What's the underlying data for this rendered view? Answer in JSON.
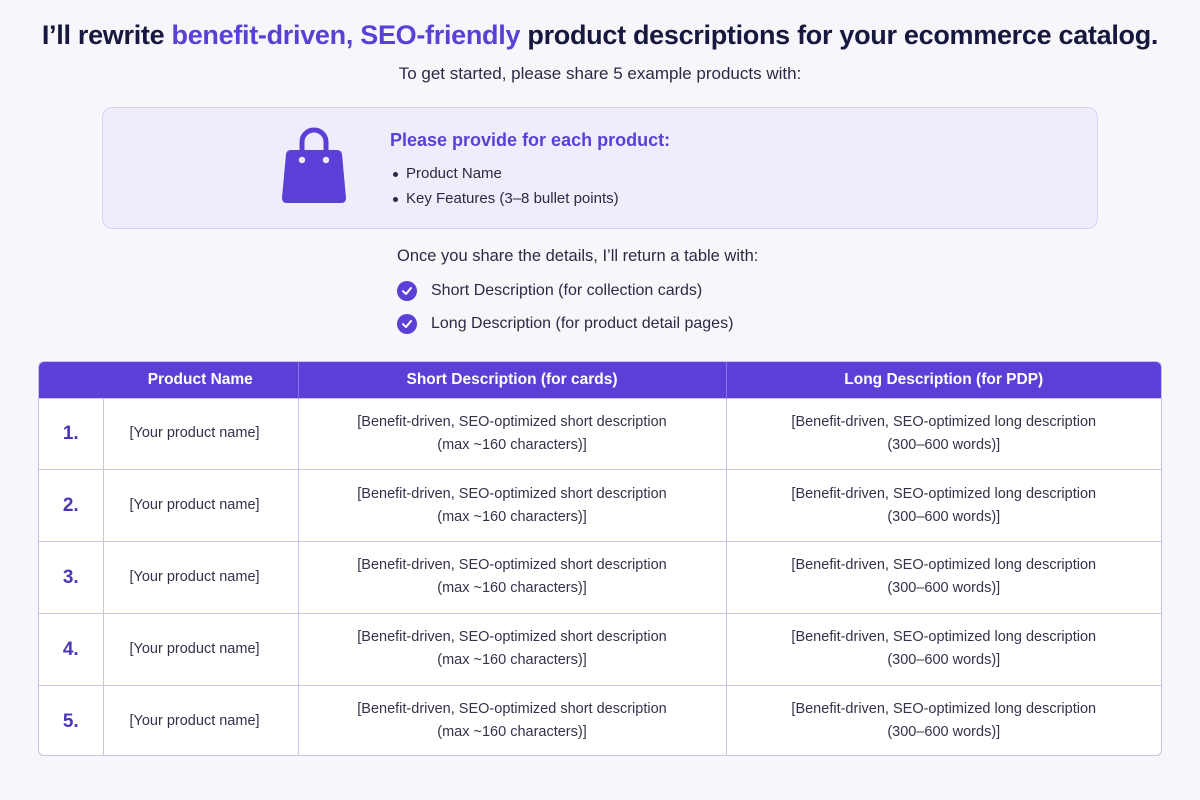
{
  "header": {
    "title_prefix": "I’ll rewrite ",
    "title_accent": "benefit-driven, SEO-friendly",
    "title_suffix": " product descriptions for your ecommerce catalog.",
    "subtitle": "To get started, please share 5 example products with:"
  },
  "info_card": {
    "icon": "shopping-bag-icon",
    "title": "Please provide for each product:",
    "items": [
      "Product Name",
      "Key Features (3–8 bullet points)"
    ]
  },
  "deliverables": {
    "intro": "Once you share the details, I’ll return a table with:",
    "items": [
      "Short Description (for collection cards)",
      "Long Description (for product detail pages)"
    ]
  },
  "table": {
    "columns": [
      "",
      "Product Name",
      "Short Description (for cards)",
      "Long Description (for PDP)"
    ],
    "rows": [
      {
        "num": "1.",
        "name": "[Your product name]",
        "short": [
          "[Benefit-driven, SEO-optimized short description",
          "(max ~160 characters)]"
        ],
        "long": [
          "[Benefit-driven, SEO-optimized long description",
          "(300–600 words)]"
        ]
      },
      {
        "num": "2.",
        "name": "[Your product name]",
        "short": [
          "[Benefit-driven, SEO-optimized short description",
          "(max ~160 characters)]"
        ],
        "long": [
          "[Benefit-driven, SEO-optimized long description",
          "(300–600 words)]"
        ]
      },
      {
        "num": "3.",
        "name": "[Your product name]",
        "short": [
          "[Benefit-driven, SEO-optimized short description",
          "(max ~160 characters)]"
        ],
        "long": [
          "[Benefit-driven, SEO-optimized long description",
          "(300–600 words)]"
        ]
      },
      {
        "num": "4.",
        "name": "[Your product name]",
        "short": [
          "[Benefit-driven, SEO-optimized short description",
          "(max ~160 characters)]"
        ],
        "long": [
          "[Benefit-driven, SEO-optimized long description",
          "(300–600 words)]"
        ]
      },
      {
        "num": "5.",
        "name": "[Your product name]",
        "short": [
          "[Benefit-driven, SEO-optimized short description",
          "(max ~160 characters)]"
        ],
        "long": [
          "[Benefit-driven, SEO-optimized long description",
          "(300–600 words)]"
        ]
      }
    ]
  },
  "colors": {
    "accent": "#5b3fd6",
    "card_background": "#efedfc",
    "page_background": "#f6f6fb"
  }
}
